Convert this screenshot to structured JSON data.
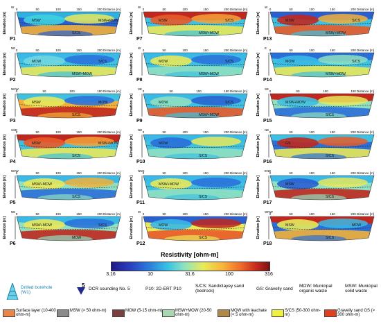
{
  "panels": [
    {
      "id": "P1",
      "dir": "W",
      "distance_label": "Distance [m]",
      "ticks": [
        "0",
        "50",
        "100",
        "150",
        "200"
      ],
      "labels": [
        "MSW",
        "S/CS",
        "MSW+MOW"
      ],
      "colors": [
        "#2fb0e0",
        "#3fd0e0",
        "#e8e85a",
        "#f2b03a",
        "#2a5fd0"
      ]
    },
    {
      "id": "P7",
      "dir": "W",
      "distance_label": "Distance [m]",
      "ticks": [
        "0",
        "50",
        "100",
        "150",
        "200"
      ],
      "labels": [
        "MSW",
        "MSW+MOW",
        "S/CS"
      ],
      "colors": [
        "#c0281f",
        "#e85a28",
        "#f4a23a",
        "#e8e85a",
        "#3fc0e0"
      ]
    },
    {
      "id": "P13",
      "dir": "W",
      "distance_label": "Distance [m]",
      "ticks": [
        "0",
        "50",
        "100",
        "150",
        "200"
      ],
      "labels": [
        "MSW",
        "MSW+MOW",
        "S/CS"
      ],
      "colors": [
        "#2a5fd0",
        "#c0281f",
        "#f2b03a",
        "#e85a28",
        "#3fc0e0"
      ]
    },
    {
      "id": "P2",
      "dir": "NE",
      "distance_label": "Distance [m]",
      "ticks": [
        "0",
        "50",
        "100",
        "150",
        "200"
      ],
      "labels": [
        "MOW",
        "MSW+MOW",
        "S/CS"
      ],
      "colors": [
        "#3ab8e6",
        "#6fd6e0",
        "#2a6fd8",
        "#e8e85a",
        "#3fc0e0"
      ]
    },
    {
      "id": "P8",
      "dir": "W",
      "distance_label": "Distance [m]",
      "ticks": [
        "0",
        "50",
        "100",
        "150",
        "200"
      ],
      "labels": [
        "MOW",
        "MSW+MOW",
        "S/CS"
      ],
      "colors": [
        "#3ab8e6",
        "#e8e85a",
        "#2a6fd8",
        "#8ee0c0",
        "#3fc0e0"
      ]
    },
    {
      "id": "P14",
      "dir": "E",
      "distance_label": "Distance [m]",
      "ticks": [
        "0",
        "50",
        "100",
        "150",
        "200"
      ],
      "labels": [
        "MOW",
        "MSW+MOW",
        "S/CS"
      ],
      "colors": [
        "#2a6fd8",
        "#3ab8e6",
        "#8ee0c0",
        "#e8e85a",
        "#3fc0e0"
      ]
    },
    {
      "id": "P3",
      "dir": "NNW",
      "distance_label": "Distance [m]",
      "ticks": [
        "0",
        "50",
        "100",
        "150"
      ],
      "labels": [
        "MSW",
        "S/CS",
        "MOW"
      ],
      "colors": [
        "#3fc0e0",
        "#e8e85a",
        "#2a6fd8",
        "#c0281f",
        "#f2b03a"
      ]
    },
    {
      "id": "P9",
      "dir": "SE",
      "distance_label": "Distance [m]",
      "ticks": [
        "0",
        "50",
        "100",
        "150"
      ],
      "labels": [
        "MOW",
        "MSW+MOW",
        "S/CS"
      ],
      "colors": [
        "#3ab8e6",
        "#8ee0c0",
        "#2a5fd0",
        "#e85a28",
        "#3fc0e0"
      ]
    },
    {
      "id": "P15",
      "dir": "SE",
      "distance_label": "Distance [m]",
      "ticks": [
        "0",
        "50",
        "100",
        "150"
      ],
      "labels": [
        "MSW+MOW",
        "S/CS"
      ],
      "colors": [
        "#c0281f",
        "#3fc0e0",
        "#e8e85a",
        "#2a6fd8",
        "#8ee0c0"
      ]
    },
    {
      "id": "P4",
      "dir": "SSE",
      "distance_label": "Distance [m]",
      "ticks": [
        "0",
        "50",
        "100",
        "150",
        "200"
      ],
      "labels": [
        "MSW",
        "S/CS",
        "MSW+MOW"
      ],
      "colors": [
        "#c0281f",
        "#e85a28",
        "#f4a23a",
        "#e8e85a",
        "#3fc0e0"
      ]
    },
    {
      "id": "P10",
      "dir": "NE",
      "distance_label": "Distance [m]",
      "ticks": [
        "0",
        "50",
        "100",
        "150",
        "200"
      ],
      "labels": [
        "MOW",
        "S/CS"
      ],
      "colors": [
        "#3ab8e6",
        "#2a6fd8",
        "#e8e85a",
        "#8ee0c0",
        "#3fc0e0"
      ]
    },
    {
      "id": "P16",
      "dir": "NE",
      "distance_label": "Distance [m]",
      "ticks": [
        "0",
        "50",
        "100",
        "150",
        "200"
      ],
      "labels": [
        "GS",
        "S/CS"
      ],
      "colors": [
        "#3fc0e0",
        "#c0281f",
        "#e85a28",
        "#e8e85a",
        "#2a6fd8"
      ]
    },
    {
      "id": "P5",
      "dir": "NNW",
      "distance_label": "Distance [m]",
      "ticks": [
        "0",
        "50",
        "100",
        "150",
        "200"
      ],
      "labels": [
        "MSW+MOW",
        "S/CS"
      ],
      "colors": [
        "#3ab8e6",
        "#e8e85a",
        "#f2b03a",
        "#2a6fd8",
        "#8ee0c0"
      ]
    },
    {
      "id": "P11",
      "dir": "NNE",
      "distance_label": "Distance [m]",
      "ticks": [
        "0",
        "50",
        "100",
        "150",
        "200"
      ],
      "labels": [
        "MSW+MOW",
        "S/CS"
      ],
      "colors": [
        "#3ab8e6",
        "#e8e85a",
        "#2a6fd8",
        "#8ee0c0",
        "#3fc0e0"
      ]
    },
    {
      "id": "P17",
      "dir": "ENE",
      "distance_label": "Distance [m]",
      "ticks": [
        "0",
        "50",
        "100",
        "150",
        "200"
      ],
      "labels": [
        "MSW",
        "S/CS"
      ],
      "colors": [
        "#3ab8e6",
        "#2a5fd0",
        "#e8e85a",
        "#c0281f",
        "#8ee0c0"
      ]
    },
    {
      "id": "P6",
      "dir": "NE",
      "distance_label": "Distance [m]",
      "ticks": [
        "0",
        "50",
        "100",
        "150",
        "200"
      ],
      "labels": [
        "MSW+MOW",
        "MOW",
        "S/CS"
      ],
      "colors": [
        "#3ab8e6",
        "#e8e85a",
        "#2a6fd8",
        "#c0281f",
        "#8ee0c0"
      ]
    },
    {
      "id": "P12",
      "dir": "W",
      "distance_label": "Distance [m]",
      "ticks": [
        "0",
        "50",
        "100",
        "150",
        "200"
      ],
      "labels": [
        "MOW",
        "S/CS"
      ],
      "colors": [
        "#2a5fd0",
        "#3ab8e6",
        "#c0281f",
        "#e85a28",
        "#e8e85a"
      ]
    },
    {
      "id": "P18",
      "dir": "WNW",
      "distance_label": "Distance [m]",
      "ticks": [
        "0",
        "50",
        "100",
        "150",
        "200"
      ],
      "labels": [
        "MSW",
        "S/CS",
        "MOW"
      ],
      "colors": [
        "#c0281f",
        "#e8e85a",
        "#3ab8e6",
        "#f2b03a",
        "#2a6fd8"
      ]
    }
  ],
  "axis": {
    "elevation_label": "Elevation [m]"
  },
  "resistivity": {
    "title": "Resistivity [ohm-m]",
    "ticks": [
      "3.16",
      "10",
      "31.6",
      "100",
      "316"
    ]
  },
  "legend": {
    "borehole": "Drilled borehole (W1)",
    "dcr_number": "5",
    "dcr": "DCR sounding No. 5",
    "ert": "P10: 2D-ERT P10",
    "scs": "S/CS: Sand/clayey sand (bedrock)",
    "gs": "GS: Gravelly sand",
    "mow": "MOW: Municipal organic waste",
    "msw": "MSW: Municipal solid waste",
    "swatches": [
      {
        "label": "Surface layer (10-400 ohm-m)",
        "color": "#e8854a"
      },
      {
        "label": "MSW (> 50 ohm-m)",
        "color": "#8a8a8a"
      },
      {
        "label": "MOW (5-15 ohm-m)",
        "color": "#7a4040"
      },
      {
        "label": "MSW+MOW (20-50 ohm-m)",
        "color": "#a8d8b0"
      },
      {
        "label": "MOW with leachate (< 5 ohm-m)",
        "color": "#b0884a"
      },
      {
        "label": "S/CS (50-300 ohm-m)",
        "color": "#f0f040"
      },
      {
        "label": "Gravelly sand GS (> 300 ohm-m)",
        "color": "#e04020"
      }
    ]
  }
}
